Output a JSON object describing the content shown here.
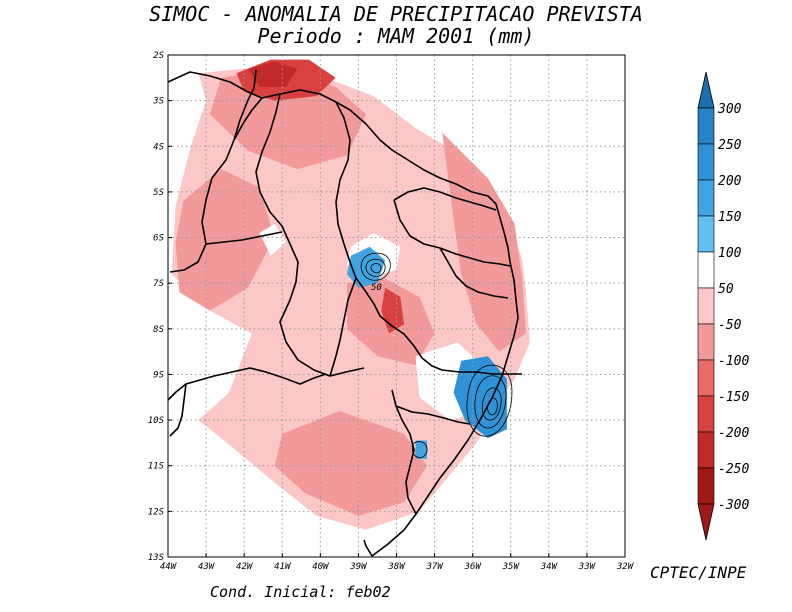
{
  "title_line1": "SIMOC -  ANOMALIA DE PRECIPITACAO PREVISTA",
  "title_line2": "Periodo : MAM 2001 (mm)",
  "footer_left": "Cond. Inicial: feb02",
  "footer_right": "CPTEC/INPE",
  "chart_data": {
    "type": "heatmap",
    "title": "SIMOC -  ANOMALIA DE PRECIPITACAO PREVISTA",
    "subtitle": "Periodo : MAM 2001 (mm)",
    "variable": "Precipitation anomaly (mm)",
    "x_range": [
      -44,
      -32
    ],
    "y_range": [
      -13,
      -2
    ],
    "x_ticks": [
      {
        "value": -44,
        "label": "44W"
      },
      {
        "value": -43,
        "label": "43W"
      },
      {
        "value": -42,
        "label": "42W"
      },
      {
        "value": -41,
        "label": "41W"
      },
      {
        "value": -40,
        "label": "40W"
      },
      {
        "value": -39,
        "label": "39W"
      },
      {
        "value": -38,
        "label": "38W"
      },
      {
        "value": -37,
        "label": "37W"
      },
      {
        "value": -36,
        "label": "36W"
      },
      {
        "value": -35,
        "label": "35W"
      },
      {
        "value": -34,
        "label": "34W"
      },
      {
        "value": -33,
        "label": "33W"
      },
      {
        "value": -32,
        "label": "32W"
      }
    ],
    "y_ticks": [
      {
        "value": -2,
        "label": "2S"
      },
      {
        "value": -3,
        "label": "3S"
      },
      {
        "value": -4,
        "label": "4S"
      },
      {
        "value": -5,
        "label": "5S"
      },
      {
        "value": -6,
        "label": "6S"
      },
      {
        "value": -7,
        "label": "7S"
      },
      {
        "value": -8,
        "label": "8S"
      },
      {
        "value": -9,
        "label": "9S"
      },
      {
        "value": -10,
        "label": "10S"
      },
      {
        "value": -11,
        "label": "11S"
      },
      {
        "value": -12,
        "label": "12S"
      },
      {
        "value": -13,
        "label": "13S"
      }
    ],
    "grid": true,
    "colorbar": {
      "labels": [
        "300",
        "250",
        "200",
        "150",
        "100",
        "50",
        "-50",
        "-100",
        "-150",
        "-200",
        "-250",
        "-300"
      ],
      "colors": [
        "#1b6fae",
        "#2582c6",
        "#2f92d6",
        "#40a4e3",
        "#62bff2",
        "#ffffff",
        "#fbc7c7",
        "#f29a9a",
        "#e86a6a",
        "#d94141",
        "#c22a2a",
        "#a01818"
      ]
    },
    "contour_label": "50",
    "regions": [
      {
        "name": "broad negative anomaly",
        "level": "-50 to -100",
        "color": "#fbc7c7",
        "points": [
          [
            -43.2,
            -2.4
          ],
          [
            -40.8,
            -2.2
          ],
          [
            -38.6,
            -2.9
          ],
          [
            -37.5,
            -3.6
          ],
          [
            -36.3,
            -4.2
          ],
          [
            -35.5,
            -5.0
          ],
          [
            -35.0,
            -5.7
          ],
          [
            -34.7,
            -6.5
          ],
          [
            -34.6,
            -7.2
          ],
          [
            -34.5,
            -8.3
          ],
          [
            -34.9,
            -9.1
          ],
          [
            -35.4,
            -9.7
          ],
          [
            -35.9,
            -10.5
          ],
          [
            -36.6,
            -11.2
          ],
          [
            -37.4,
            -12.0
          ],
          [
            -38.8,
            -12.4
          ],
          [
            -40.1,
            -12.1
          ],
          [
            -41.3,
            -11.3
          ],
          [
            -42.3,
            -10.6
          ],
          [
            -43.2,
            -10.0
          ],
          [
            -42.4,
            -9.4
          ],
          [
            -41.8,
            -8.1
          ],
          [
            -42.9,
            -7.6
          ],
          [
            -43.9,
            -6.8
          ],
          [
            -43.8,
            -5.3
          ],
          [
            -43.4,
            -4.0
          ],
          [
            -43.0,
            -3.0
          ]
        ]
      },
      {
        "name": "western moderate anomaly",
        "level": "-100 to -150",
        "color": "#f29a9a",
        "points": [
          [
            -43.6,
            -5.2
          ],
          [
            -42.6,
            -4.5
          ],
          [
            -41.6,
            -4.9
          ],
          [
            -41.2,
            -6.0
          ],
          [
            -41.9,
            -7.1
          ],
          [
            -42.9,
            -7.6
          ],
          [
            -43.7,
            -7.2
          ],
          [
            -43.8,
            -6.1
          ]
        ]
      },
      {
        "name": "northern moderate anomaly",
        "level": "-100 to -150",
        "color": "#f29a9a",
        "points": [
          [
            -42.6,
            -2.5
          ],
          [
            -41.0,
            -2.3
          ],
          [
            -39.6,
            -2.7
          ],
          [
            -38.8,
            -3.3
          ],
          [
            -39.3,
            -4.2
          ],
          [
            -40.6,
            -4.5
          ],
          [
            -41.9,
            -4.1
          ],
          [
            -42.9,
            -3.3
          ]
        ]
      },
      {
        "name": "northern strong anomaly",
        "level": "-200 to -250",
        "color": "#d94141",
        "points": [
          [
            -42.2,
            -2.4
          ],
          [
            -41.3,
            -2.1
          ],
          [
            -40.3,
            -2.1
          ],
          [
            -39.6,
            -2.5
          ],
          [
            -40.1,
            -2.9
          ],
          [
            -41.2,
            -3.0
          ],
          [
            -42.0,
            -2.8
          ]
        ]
      },
      {
        "name": "northern peak anomaly",
        "level": "-250 to -300",
        "color": "#c22a2a",
        "points": [
          [
            -41.9,
            -2.3
          ],
          [
            -41.2,
            -2.15
          ],
          [
            -40.6,
            -2.3
          ],
          [
            -40.9,
            -2.7
          ],
          [
            -41.6,
            -2.7
          ]
        ]
      },
      {
        "name": "eastern moderate anomaly",
        "level": "-100 to -150",
        "color": "#f29a9a",
        "points": [
          [
            -36.8,
            -3.7
          ],
          [
            -35.6,
            -4.7
          ],
          [
            -34.9,
            -5.7
          ],
          [
            -34.7,
            -6.9
          ],
          [
            -34.6,
            -8.1
          ],
          [
            -35.3,
            -8.5
          ],
          [
            -35.9,
            -7.9
          ],
          [
            -36.3,
            -6.8
          ],
          [
            -36.5,
            -5.6
          ]
        ]
      },
      {
        "name": "central moderate anomaly",
        "level": "-100 to -150",
        "color": "#f29a9a",
        "points": [
          [
            -39.3,
            -7.0
          ],
          [
            -38.3,
            -6.9
          ],
          [
            -37.4,
            -7.3
          ],
          [
            -37.0,
            -8.1
          ],
          [
            -37.5,
            -8.8
          ],
          [
            -38.5,
            -8.6
          ],
          [
            -39.3,
            -8.0
          ]
        ]
      },
      {
        "name": "central strong anomaly",
        "level": "-200 to -250",
        "color": "#d94141",
        "points": [
          [
            -38.3,
            -7.1
          ],
          [
            -37.9,
            -7.3
          ],
          [
            -37.8,
            -7.9
          ],
          [
            -38.2,
            -8.1
          ],
          [
            -38.4,
            -7.6
          ]
        ]
      },
      {
        "name": "southern moderate anomaly",
        "level": "-100 to -150",
        "color": "#f29a9a",
        "points": [
          [
            -41.0,
            -10.3
          ],
          [
            -39.5,
            -9.8
          ],
          [
            -37.8,
            -10.3
          ],
          [
            -37.2,
            -11.0
          ],
          [
            -37.8,
            -11.8
          ],
          [
            -39.0,
            -12.1
          ],
          [
            -40.4,
            -11.6
          ],
          [
            -41.2,
            -11.0
          ]
        ]
      },
      {
        "name": "near-normal area north",
        "level": "-50 to 50",
        "color": "#ffffff",
        "points": [
          [
            -39.2,
            -6.2
          ],
          [
            -38.6,
            -5.9
          ],
          [
            -37.9,
            -6.2
          ],
          [
            -38.0,
            -6.7
          ],
          [
            -38.7,
            -6.9
          ],
          [
            -39.3,
            -6.6
          ]
        ]
      },
      {
        "name": "near-normal area east",
        "level": "-50 to 50",
        "color": "#ffffff",
        "points": [
          [
            -37.5,
            -8.6
          ],
          [
            -36.4,
            -8.3
          ],
          [
            -35.6,
            -8.9
          ],
          [
            -35.7,
            -9.8
          ],
          [
            -36.6,
            -10.0
          ],
          [
            -37.4,
            -9.5
          ]
        ]
      },
      {
        "name": "near-normal area west",
        "level": "-50 to 50",
        "color": "#ffffff",
        "points": [
          [
            -41.6,
            -5.9
          ],
          [
            -41.2,
            -5.7
          ],
          [
            -40.9,
            -6.1
          ],
          [
            -41.3,
            -6.4
          ]
        ]
      },
      {
        "name": "positive anomaly 1",
        "level": "50 to 150",
        "color": "#40a4e3",
        "points": [
          [
            -39.2,
            -6.4
          ],
          [
            -38.7,
            -6.2
          ],
          [
            -38.3,
            -6.5
          ],
          [
            -38.5,
            -7.0
          ],
          [
            -39.0,
            -7.1
          ],
          [
            -39.3,
            -6.8
          ]
        ]
      },
      {
        "name": "positive anomaly 2",
        "level": "50 to 250",
        "color": "#2f92d6",
        "points": [
          [
            -36.3,
            -8.7
          ],
          [
            -35.6,
            -8.6
          ],
          [
            -35.1,
            -9.1
          ],
          [
            -35.1,
            -10.2
          ],
          [
            -35.6,
            -10.4
          ],
          [
            -36.2,
            -10.0
          ],
          [
            -36.5,
            -9.4
          ]
        ]
      },
      {
        "name": "positive anomaly 3",
        "level": "50 to 100",
        "color": "#40a4e3",
        "points": [
          [
            -37.5,
            -10.45
          ],
          [
            -37.2,
            -10.45
          ],
          [
            -37.2,
            -10.85
          ],
          [
            -37.5,
            -10.85
          ]
        ]
      }
    ]
  }
}
